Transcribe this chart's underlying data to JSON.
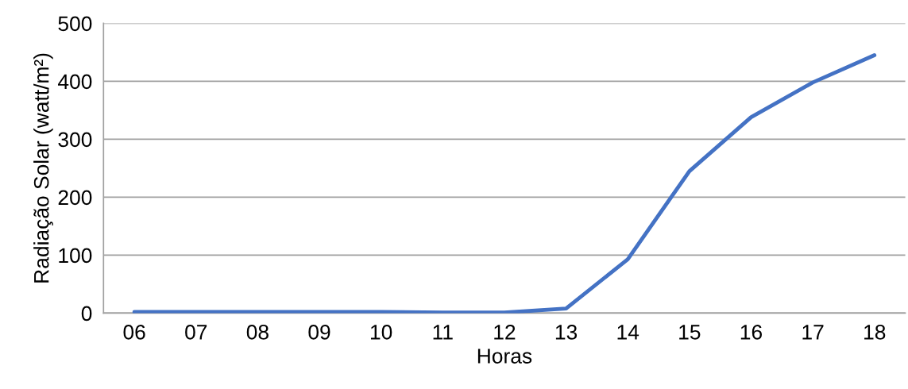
{
  "chart_data": {
    "type": "line",
    "xlabel": "Horas",
    "ylabel": "Radiação Solar (watt/m²)",
    "categories": [
      "06",
      "07",
      "08",
      "09",
      "10",
      "11",
      "12",
      "13",
      "14",
      "15",
      "16",
      "17",
      "18"
    ],
    "series": [
      {
        "color": "#4472c4",
        "values": [
          2,
          2,
          2,
          2,
          2,
          1,
          1,
          8,
          93,
          245,
          338,
          398,
          445
        ]
      }
    ],
    "ylim": [
      0,
      500
    ],
    "yticks": [
      0,
      100,
      200,
      300,
      400,
      500
    ],
    "grid": "y",
    "marker": "none",
    "line_style": "solid"
  }
}
